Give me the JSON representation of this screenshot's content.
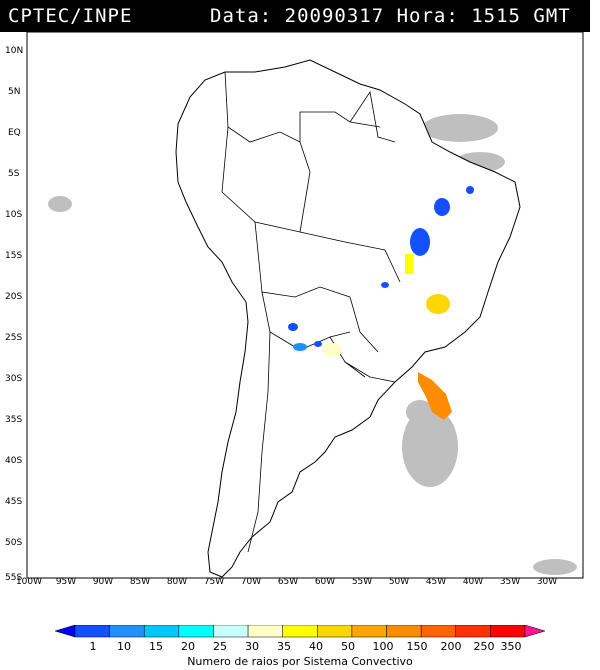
{
  "header": {
    "source": "CPTEC/INPE",
    "datetime": "Data: 20090317 Hora: 1515 GMT"
  },
  "axes": {
    "lat_labels": [
      "10N",
      "5N",
      "EQ",
      "5S",
      "10S",
      "15S",
      "20S",
      "25S",
      "30S",
      "35S",
      "40S",
      "45S",
      "50S",
      "55S"
    ],
    "lon_labels": [
      "100W",
      "95W",
      "90W",
      "85W",
      "80W",
      "75W",
      "70W",
      "65W",
      "60W",
      "55W",
      "50W",
      "45W",
      "40W",
      "35W",
      "30W"
    ]
  },
  "legend": {
    "title": "Numero de raios por Sistema Convectivo",
    "ticks": [
      "1",
      "10",
      "15",
      "20",
      "25",
      "30",
      "35",
      "40",
      "50",
      "100",
      "150",
      "200",
      "250",
      "350"
    ],
    "colors": [
      "#0000ff",
      "#1450ff",
      "#1e90ff",
      "#00c8ff",
      "#00ffff",
      "#c8ffff",
      "#ffffc8",
      "#ffff00",
      "#ffd700",
      "#ffa500",
      "#ff8c00",
      "#ff6400",
      "#ff3200",
      "#ff0000",
      "#ff1493"
    ]
  }
}
